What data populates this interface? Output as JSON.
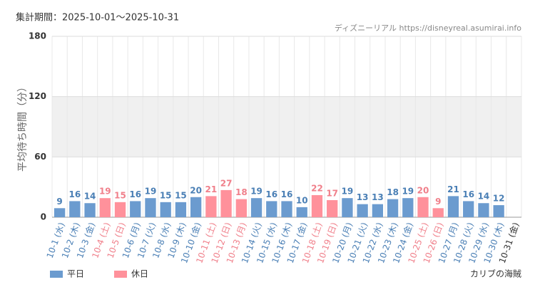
{
  "chart_data": {
    "type": "bar",
    "title": "集計期間：2025-10-01〜2025-10-31",
    "source": "ディズニーリアル https://disneyreal.asumirai.info",
    "y_label": "平均待ち時間（分）",
    "attraction": "カリブの海賊",
    "categories": [
      "10-1 (水)",
      "10-2 (木)",
      "10-3 (金)",
      "10-4 (土)",
      "10-5 (日)",
      "10-6 (月)",
      "10-7 (火)",
      "10-8 (水)",
      "10-9 (木)",
      "10-10 (金)",
      "10-11 (土)",
      "10-12 (日)",
      "10-13 (月)",
      "10-14 (火)",
      "10-15 (水)",
      "10-16 (木)",
      "10-17 (金)",
      "10-18 (土)",
      "10-19 (日)",
      "10-20 (月)",
      "10-21 (火)",
      "10-22 (水)",
      "10-23 (木)",
      "10-24 (金)",
      "10-25 (土)",
      "10-26 (日)",
      "10-27 (月)",
      "10-28 (火)",
      "10-29 (水)",
      "10-30 (木)",
      "10-31 (金)"
    ],
    "series": [
      {
        "name": "平日",
        "color": "#6b9bcf",
        "label_color": "#4a7fb5",
        "values": [
          9,
          16,
          14,
          null,
          null,
          16,
          19,
          15,
          15,
          20,
          null,
          null,
          null,
          19,
          16,
          16,
          10,
          null,
          null,
          19,
          13,
          13,
          18,
          19,
          null,
          null,
          21,
          16,
          14,
          12,
          null
        ]
      },
      {
        "name": "休日",
        "color": "#ff919b",
        "label_color": "#f07f8a",
        "values": [
          null,
          null,
          null,
          19,
          15,
          null,
          null,
          null,
          null,
          null,
          21,
          27,
          18,
          null,
          null,
          null,
          null,
          22,
          17,
          null,
          null,
          null,
          null,
          null,
          20,
          9,
          null,
          null,
          null,
          null,
          null
        ]
      }
    ],
    "ylim": [
      0,
      180
    ],
    "yticks": [
      0,
      60,
      120,
      180
    ],
    "grid": true
  }
}
